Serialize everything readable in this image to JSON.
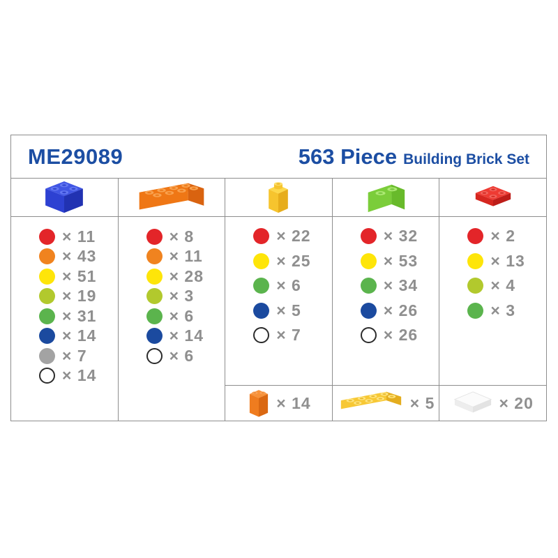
{
  "header": {
    "model": "ME29089",
    "piece_count": "563 Piece",
    "set_name": "Building Brick Set"
  },
  "accent_color": "#1c4ea3",
  "count_text_color": "#8f8f8f",
  "border_color": "#8d8d8d",
  "palette": {
    "red": "#e32529",
    "orange": "#f0831f",
    "yellow": "#fee509",
    "lime": "#b2c92d",
    "green": "#5bb44d",
    "blue": "#1b4a9f",
    "gray": "#a3a3a3",
    "white": "#ffffff"
  },
  "columns": [
    {
      "brick_icon": "blue-2x2-brick",
      "counts": [
        {
          "color": "red",
          "label": "× 11"
        },
        {
          "color": "orange",
          "label": "× 43"
        },
        {
          "color": "yellow",
          "label": "× 51"
        },
        {
          "color": "lime",
          "label": "× 19"
        },
        {
          "color": "green",
          "label": "× 31"
        },
        {
          "color": "blue",
          "label": "× 14"
        },
        {
          "color": "gray",
          "label": "× 7"
        },
        {
          "color": "white",
          "label": "× 14"
        }
      ],
      "bottom": null
    },
    {
      "brick_icon": "orange-2x4-brick",
      "counts": [
        {
          "color": "red",
          "label": "× 8"
        },
        {
          "color": "orange",
          "label": "× 11"
        },
        {
          "color": "yellow",
          "label": "× 28"
        },
        {
          "color": "lime",
          "label": "× 3"
        },
        {
          "color": "green",
          "label": "× 6"
        },
        {
          "color": "blue",
          "label": "× 14"
        },
        {
          "color": "white",
          "label": "× 6"
        }
      ],
      "bottom": null
    },
    {
      "brick_icon": "yellow-1x1-brick",
      "counts": [
        {
          "color": "red",
          "label": "× 22"
        },
        {
          "color": "yellow",
          "label": "× 25"
        },
        {
          "color": "green",
          "label": "× 6"
        },
        {
          "color": "blue",
          "label": "× 5"
        },
        {
          "color": "white",
          "label": "× 7"
        }
      ],
      "bottom": {
        "brick_icon": "orange-1x2-tall-brick",
        "label": "× 14"
      }
    },
    {
      "brick_icon": "green-1x2-brick",
      "counts": [
        {
          "color": "red",
          "label": "× 32"
        },
        {
          "color": "yellow",
          "label": "× 53"
        },
        {
          "color": "green",
          "label": "× 34"
        },
        {
          "color": "blue",
          "label": "× 26"
        },
        {
          "color": "white",
          "label": "× 26"
        }
      ],
      "bottom": {
        "brick_icon": "yellow-2x4-plate",
        "label": "× 5"
      }
    },
    {
      "brick_icon": "red-2x2-plate",
      "counts": [
        {
          "color": "red",
          "label": "× 2"
        },
        {
          "color": "yellow",
          "label": "× 13"
        },
        {
          "color": "lime",
          "label": "× 4"
        },
        {
          "color": "green",
          "label": "× 3"
        }
      ],
      "bottom": {
        "brick_icon": "white-2x2-tile",
        "label": "× 20"
      }
    }
  ],
  "chart_data": {
    "type": "table",
    "title": "563 Piece Building Brick Set",
    "model": "ME29089",
    "piece_columns": [
      "2x2 brick (blue)",
      "2x4 brick (orange)",
      "1x1 brick (yellow)",
      "1x2 brick (green)",
      "2x2 plate (red)"
    ],
    "rows": [
      {
        "color": "red",
        "counts": [
          11,
          8,
          22,
          32,
          2
        ]
      },
      {
        "color": "orange",
        "counts": [
          43,
          11,
          null,
          null,
          null
        ]
      },
      {
        "color": "yellow",
        "counts": [
          51,
          28,
          25,
          53,
          13
        ]
      },
      {
        "color": "lime",
        "counts": [
          19,
          3,
          null,
          null,
          4
        ]
      },
      {
        "color": "green",
        "counts": [
          31,
          6,
          6,
          34,
          3
        ]
      },
      {
        "color": "blue",
        "counts": [
          14,
          14,
          5,
          26,
          null
        ]
      },
      {
        "color": "gray",
        "counts": [
          7,
          null,
          null,
          null,
          null
        ]
      },
      {
        "color": "white",
        "counts": [
          14,
          6,
          7,
          26,
          null
        ]
      }
    ],
    "extra_pieces": [
      {
        "piece": "orange 1x2 tall brick",
        "count": 14
      },
      {
        "piece": "yellow 2x4 plate",
        "count": 5
      },
      {
        "piece": "white 2x2 tile",
        "count": 20
      }
    ]
  }
}
